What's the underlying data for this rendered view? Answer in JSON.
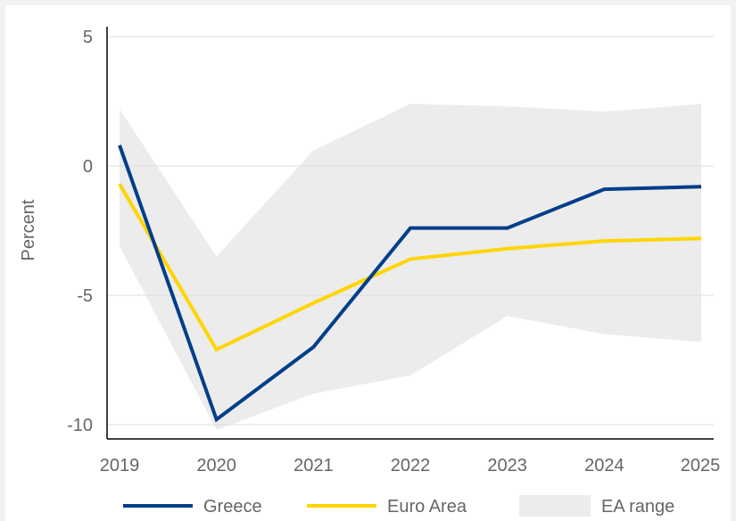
{
  "chart_data": {
    "type": "line",
    "title": "",
    "xlabel": "",
    "ylabel": "Percent",
    "ylim": [
      -10.6,
      5.4
    ],
    "yticks": [
      5,
      0,
      -5,
      -10
    ],
    "ytick_labels": [
      "5",
      "0",
      "-5",
      "-10"
    ],
    "categories": [
      "2019",
      "2020",
      "2021",
      "2022",
      "2023",
      "2024",
      "2025"
    ],
    "grid": "horizontal",
    "legend_position": "bottom",
    "series": [
      {
        "name": "Greece",
        "color": "#003e8b",
        "values": [
          0.8,
          -9.8,
          -7.0,
          -2.4,
          -2.4,
          -0.9,
          -0.8
        ]
      },
      {
        "name": "Euro Area",
        "color": "#ffd500",
        "values": [
          -0.7,
          -7.1,
          -5.3,
          -3.6,
          -3.2,
          -2.9,
          -2.8
        ]
      }
    ],
    "range_band": {
      "name": "EA range",
      "color": "#ececec",
      "upper": [
        2.2,
        -3.5,
        0.6,
        2.4,
        2.3,
        2.1,
        2.4
      ],
      "lower": [
        -3.1,
        -10.2,
        -8.8,
        -8.1,
        -5.8,
        -6.5,
        -6.8
      ]
    }
  }
}
